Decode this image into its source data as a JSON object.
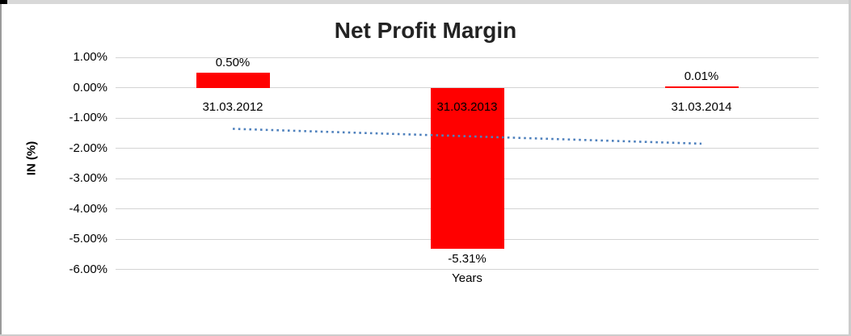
{
  "chart": {
    "title": "Net Profit Margin",
    "ylabel": "IN (%)",
    "xlabel": "Years"
  },
  "chart_data": {
    "type": "bar",
    "title": "Net Profit Margin",
    "xlabel": "Years",
    "ylabel": "IN (%)",
    "categories": [
      "31.03.2012",
      "31.03.2013",
      "31.03.2014"
    ],
    "values": [
      0.5,
      -5.31,
      0.01
    ],
    "data_labels": [
      "0.50%",
      "-5.31%",
      "0.01%"
    ],
    "ylim": [
      -6,
      1
    ],
    "ytick_step": 1,
    "ytick_labels": [
      "1.00%",
      "0.00%",
      "-1.00%",
      "-2.00%",
      "-3.00%",
      "-4.00%",
      "-5.00%",
      "-6.00%"
    ],
    "grid": true,
    "legend": "none",
    "bar_color": "#FF0000",
    "grid_color": "#d4d4d4",
    "trendline": {
      "type": "linear",
      "style": "dotted",
      "color": "#4F81BD",
      "start_value": -1.36,
      "end_value": -1.85
    }
  }
}
